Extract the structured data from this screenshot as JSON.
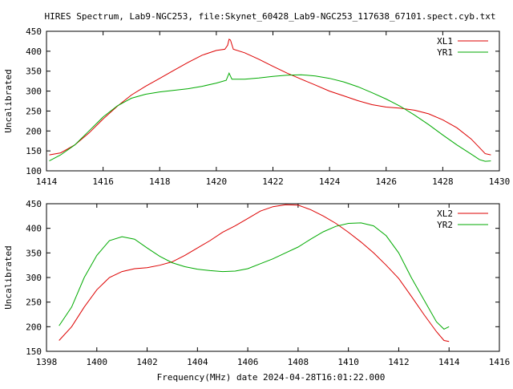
{
  "title": "HIRES Spectrum, Lab9-NGC253, file:Skynet_60428_Lab9-NGC253_117638_67101.spect.cyb.txt",
  "footer_label": "Frequency(MHz) date 2024-04-28T16:01:22.000",
  "colors": {
    "red": "#dd0000",
    "green": "#00aa00",
    "axis": "#000000"
  },
  "chart_data": [
    {
      "type": "line",
      "ylabel": "Uncalibrated",
      "xlim": [
        1414,
        1430
      ],
      "ylim": [
        100,
        450
      ],
      "xticks": [
        1414,
        1416,
        1418,
        1420,
        1422,
        1424,
        1426,
        1428,
        1430
      ],
      "yticks": [
        100,
        150,
        200,
        250,
        300,
        350,
        400,
        450
      ],
      "legend_position": "top-right",
      "series": [
        {
          "name": "XL1",
          "color": "#dd0000",
          "points": [
            [
              1414.1,
              140
            ],
            [
              1414.5,
              145
            ],
            [
              1415,
              165
            ],
            [
              1415.5,
              195
            ],
            [
              1416,
              230
            ],
            [
              1416.5,
              262
            ],
            [
              1417,
              290
            ],
            [
              1417.5,
              312
            ],
            [
              1418,
              332
            ],
            [
              1418.5,
              352
            ],
            [
              1419,
              372
            ],
            [
              1419.5,
              390
            ],
            [
              1420,
              402
            ],
            [
              1420.3,
              405
            ],
            [
              1420.4,
              415
            ],
            [
              1420.45,
              430
            ],
            [
              1420.5,
              428
            ],
            [
              1420.6,
              405
            ],
            [
              1421,
              396
            ],
            [
              1421.5,
              380
            ],
            [
              1422,
              362
            ],
            [
              1422.5,
              345
            ],
            [
              1423,
              330
            ],
            [
              1423.5,
              315
            ],
            [
              1424,
              300
            ],
            [
              1424.5,
              288
            ],
            [
              1425,
              276
            ],
            [
              1425.5,
              266
            ],
            [
              1426,
              260
            ],
            [
              1426.5,
              257
            ],
            [
              1427,
              252
            ],
            [
              1427.5,
              243
            ],
            [
              1428,
              228
            ],
            [
              1428.5,
              208
            ],
            [
              1429,
              180
            ],
            [
              1429.3,
              158
            ],
            [
              1429.5,
              143
            ],
            [
              1429.7,
              140
            ]
          ]
        },
        {
          "name": "YR1",
          "color": "#00aa00",
          "points": [
            [
              1414.1,
              125
            ],
            [
              1414.5,
              140
            ],
            [
              1415,
              165
            ],
            [
              1415.5,
              200
            ],
            [
              1416,
              235
            ],
            [
              1416.5,
              263
            ],
            [
              1417,
              282
            ],
            [
              1417.5,
              292
            ],
            [
              1418,
              298
            ],
            [
              1418.5,
              302
            ],
            [
              1419,
              306
            ],
            [
              1419.5,
              312
            ],
            [
              1420,
              320
            ],
            [
              1420.35,
              327
            ],
            [
              1420.45,
              345
            ],
            [
              1420.55,
              330
            ],
            [
              1421,
              330
            ],
            [
              1421.5,
              333
            ],
            [
              1422,
              337
            ],
            [
              1422.5,
              340
            ],
            [
              1423,
              341
            ],
            [
              1423.5,
              338
            ],
            [
              1424,
              332
            ],
            [
              1424.5,
              323
            ],
            [
              1425,
              311
            ],
            [
              1425.5,
              296
            ],
            [
              1426,
              280
            ],
            [
              1426.5,
              262
            ],
            [
              1427,
              240
            ],
            [
              1427.5,
              216
            ],
            [
              1428,
              190
            ],
            [
              1428.5,
              165
            ],
            [
              1429,
              142
            ],
            [
              1429.3,
              128
            ],
            [
              1429.5,
              124
            ],
            [
              1429.7,
              125
            ]
          ]
        }
      ]
    },
    {
      "type": "line",
      "ylabel": "Uncalibrated",
      "xlim": [
        1398,
        1416
      ],
      "ylim": [
        150,
        450
      ],
      "xticks": [
        1398,
        1400,
        1402,
        1404,
        1406,
        1408,
        1410,
        1412,
        1414,
        1416
      ],
      "yticks": [
        150,
        200,
        250,
        300,
        350,
        400,
        450
      ],
      "legend_position": "top-right",
      "series": [
        {
          "name": "XL2",
          "color": "#dd0000",
          "points": [
            [
              1398.5,
              172
            ],
            [
              1399,
              200
            ],
            [
              1399.5,
              240
            ],
            [
              1400,
              275
            ],
            [
              1400.5,
              300
            ],
            [
              1401,
              312
            ],
            [
              1401.5,
              318
            ],
            [
              1402,
              320
            ],
            [
              1402.5,
              325
            ],
            [
              1403,
              332
            ],
            [
              1403.5,
              345
            ],
            [
              1404,
              360
            ],
            [
              1404.5,
              375
            ],
            [
              1405,
              392
            ],
            [
              1405.5,
              405
            ],
            [
              1406,
              420
            ],
            [
              1406.5,
              435
            ],
            [
              1407,
              444
            ],
            [
              1407.5,
              448
            ],
            [
              1408,
              447
            ],
            [
              1408.5,
              438
            ],
            [
              1409,
              425
            ],
            [
              1409.5,
              410
            ],
            [
              1410,
              392
            ],
            [
              1410.5,
              372
            ],
            [
              1411,
              350
            ],
            [
              1411.5,
              325
            ],
            [
              1412,
              298
            ],
            [
              1412.5,
              262
            ],
            [
              1413,
              225
            ],
            [
              1413.5,
              190
            ],
            [
              1413.8,
              172
            ],
            [
              1414,
              170
            ]
          ]
        },
        {
          "name": "YR2",
          "color": "#00aa00",
          "points": [
            [
              1398.5,
              202
            ],
            [
              1399,
              240
            ],
            [
              1399.5,
              300
            ],
            [
              1400,
              345
            ],
            [
              1400.5,
              375
            ],
            [
              1401,
              383
            ],
            [
              1401.5,
              378
            ],
            [
              1402,
              360
            ],
            [
              1402.5,
              343
            ],
            [
              1403,
              330
            ],
            [
              1403.5,
              322
            ],
            [
              1404,
              317
            ],
            [
              1404.5,
              314
            ],
            [
              1405,
              312
            ],
            [
              1405.5,
              313
            ],
            [
              1406,
              318
            ],
            [
              1406.5,
              328
            ],
            [
              1407,
              338
            ],
            [
              1407.5,
              350
            ],
            [
              1408,
              362
            ],
            [
              1408.5,
              378
            ],
            [
              1409,
              393
            ],
            [
              1409.5,
              404
            ],
            [
              1410,
              410
            ],
            [
              1410.5,
              411
            ],
            [
              1411,
              405
            ],
            [
              1411.5,
              385
            ],
            [
              1412,
              350
            ],
            [
              1412.5,
              300
            ],
            [
              1413,
              255
            ],
            [
              1413.5,
              210
            ],
            [
              1413.8,
              195
            ],
            [
              1414,
              200
            ]
          ]
        }
      ]
    }
  ]
}
